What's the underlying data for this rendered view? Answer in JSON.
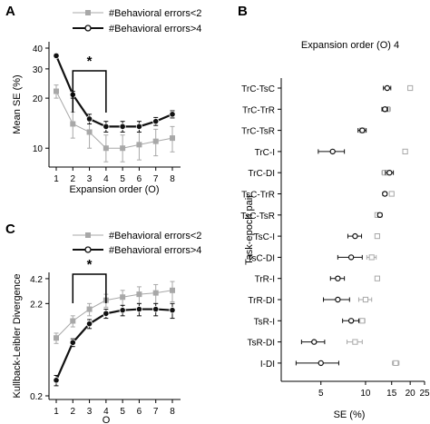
{
  "panels": {
    "A": "A",
    "B": "B",
    "C": "C"
  },
  "colors": {
    "low_errors": "#a8a8a8",
    "high_errors": "#111111"
  },
  "chart_data": [
    {
      "id": "A",
      "type": "line",
      "title": "",
      "xlabel": "Expansion order (O)",
      "ylabel": "Mean SE (%)",
      "x": [
        1,
        2,
        3,
        4,
        5,
        6,
        7,
        8
      ],
      "xticks": [
        "1",
        "2",
        "3",
        "4",
        "5",
        "6",
        "7",
        "8"
      ],
      "ylim": [
        8.2,
        40
      ],
      "yscale": "log",
      "yticks": [
        "10",
        "20",
        "30",
        "40"
      ],
      "legend_position": "top",
      "series": [
        {
          "name": "#Behavioral errors<2",
          "color_key": "low_errors",
          "values": [
            22,
            14,
            12.5,
            10,
            10,
            10.5,
            11,
            11.5
          ],
          "errors": [
            2.0,
            2.5,
            2.5,
            2.0,
            2.0,
            2.0,
            2.0,
            2.0
          ]
        },
        {
          "name": "#Behavioral errors>4",
          "color_key": "high_errors",
          "values": [
            36,
            21,
            15,
            13.5,
            13.5,
            13.5,
            14.5,
            16
          ],
          "errors": [
            1.0,
            1.0,
            1.0,
            1.0,
            1.0,
            1.0,
            0.8,
            0.8
          ]
        }
      ],
      "annotation": {
        "text": "*",
        "x_from": 2,
        "x_to": 4
      }
    },
    {
      "id": "B",
      "type": "scatter",
      "title": "Expansion order (O) 4",
      "xlabel": "SE (%)",
      "ylabel": "Task-epoch pair",
      "xscale": "log",
      "xlim": [
        2.7,
        25
      ],
      "xticks": [
        "5",
        "10",
        "15",
        "20",
        "25"
      ],
      "categories": [
        "TrC-TsC",
        "TrC-TrR",
        "TrC-TsR",
        "TrC-I",
        "TrC-DI",
        "TsC-TrR",
        "TsC-TsR",
        "TsC-I",
        "TsC-DI",
        "TrR-I",
        "TrR-DI",
        "TsR-I",
        "TsR-DI",
        "I-DI"
      ],
      "series": [
        {
          "name": "",
          "color_key": "high_errors",
          "values": [
            14,
            13.5,
            9.5,
            6,
            14.5,
            13.5,
            12.5,
            8.5,
            8,
            6.5,
            6.5,
            8,
            4.5,
            5
          ],
          "errors": [
            0.8,
            0.6,
            0.6,
            1.2,
            0.9,
            0.4,
            0.4,
            0.9,
            1.5,
            0.7,
            1.3,
            1.0,
            0.8,
            1.6
          ]
        },
        {
          "name": "",
          "color_key": "low_errors",
          "values": [
            20,
            14,
            9.5,
            18.5,
            13.5,
            15,
            12,
            12,
            11,
            12,
            10,
            9.5,
            8.5,
            16
          ],
          "errors": [
            0.5,
            0.7,
            0.4,
            0.4,
            0.6,
            0.4,
            0.4,
            0.4,
            0.8,
            0.4,
            1.0,
            0.4,
            1.0,
            0.8
          ]
        }
      ]
    },
    {
      "id": "C",
      "type": "line",
      "title": "",
      "xlabel": "O",
      "ylabel": "Kullback-Leibler Divergence",
      "x": [
        1,
        2,
        3,
        4,
        5,
        6,
        7,
        8
      ],
      "xticks": [
        "1",
        "2",
        "3",
        "4",
        "5",
        "6",
        "7",
        "8"
      ],
      "ylim": [
        0.2,
        4.5
      ],
      "yscale": "log",
      "yticks": [
        "0.2",
        "2.2",
        "4.2"
      ],
      "legend_position": "top",
      "series": [
        {
          "name": "#Behavioral errors<2",
          "color_key": "low_errors",
          "values": [
            0.9,
            1.4,
            1.9,
            2.4,
            2.6,
            2.8,
            2.9,
            3.1
          ],
          "errors": [
            0.12,
            0.2,
            0.3,
            0.4,
            0.5,
            0.6,
            0.7,
            0.8
          ]
        },
        {
          "name": "#Behavioral errors>4",
          "color_key": "high_errors",
          "values": [
            0.3,
            0.8,
            1.3,
            1.7,
            1.85,
            1.9,
            1.9,
            1.85
          ],
          "errors": [
            0.04,
            0.08,
            0.15,
            0.2,
            0.25,
            0.3,
            0.3,
            0.35
          ]
        }
      ],
      "annotation": {
        "text": "*",
        "x_from": 2,
        "x_to": 4
      }
    }
  ]
}
